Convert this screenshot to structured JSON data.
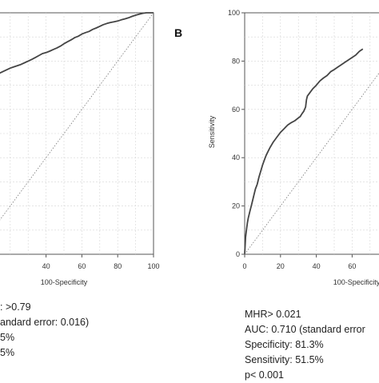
{
  "panels": [
    {
      "letter": "",
      "xlabel": "100-Specificity",
      "ylabel": "",
      "stats": [
        ": >0.79",
        "andard error: 0.016)",
        "5%",
        "5%"
      ]
    },
    {
      "letter": "B",
      "xlabel": "100-Specificity",
      "ylabel": "Sensitivity",
      "stats": [
        "MHR> 0.021",
        "AUC: 0.710 (standard error",
        "Specificity: 81.3%",
        "Sensitivity: 51.5%",
        "p< 0.001"
      ]
    }
  ],
  "chart_data": [
    {
      "type": "line",
      "title": "",
      "xlabel": "100-Specificity",
      "ylabel": "",
      "xlim": [
        0,
        100
      ],
      "ylim": [
        0,
        100
      ],
      "x_ticks": [
        40,
        60,
        80,
        100
      ],
      "y_ticks": [],
      "grid": true,
      "series": [
        {
          "style": "solid",
          "color": "#444444",
          "x": [
            0,
            2,
            4,
            6,
            8,
            10,
            12,
            14,
            16,
            18,
            20,
            22,
            24,
            26,
            28,
            30,
            32,
            34,
            36,
            38,
            40,
            42,
            44,
            46,
            48,
            50,
            52,
            54,
            56,
            58,
            60,
            62,
            64,
            66,
            68,
            70,
            72,
            74,
            76,
            78,
            80,
            82,
            84,
            86,
            88,
            90,
            92,
            94,
            96,
            98,
            100
          ],
          "y": [
            72,
            72.4,
            72.8,
            73.2,
            73.7,
            74.1,
            74.5,
            75,
            75.7,
            76.4,
            77.1,
            77.6,
            78.1,
            78.6,
            79.3,
            80,
            80.7,
            81.5,
            82.3,
            83.1,
            83.5,
            84.1,
            84.8,
            85.4,
            86.2,
            87.2,
            88,
            88.8,
            89.7,
            90.3,
            91.2,
            91.8,
            92.3,
            93.1,
            93.7,
            94.4,
            95.1,
            95.6,
            96,
            96.3,
            96.6,
            97.1,
            97.5,
            97.9,
            98.5,
            99,
            99.4,
            99.8,
            100,
            100,
            100
          ]
        },
        {
          "style": "dotted",
          "color": "#777777",
          "x": [
            0,
            100
          ],
          "y": [
            0,
            100
          ]
        }
      ]
    },
    {
      "type": "line",
      "title": "",
      "xlabel": "100-Specificity",
      "ylabel": "Sensitivity",
      "xlim": [
        0,
        100
      ],
      "ylim": [
        0,
        100
      ],
      "x_ticks": [
        0,
        20,
        40,
        60
      ],
      "y_ticks": [
        0,
        20,
        40,
        60,
        80,
        100
      ],
      "grid": true,
      "series": [
        {
          "style": "solid",
          "color": "#444444",
          "x": [
            0,
            0.5,
            1,
            1.5,
            2,
            3,
            4,
            5,
            6,
            7,
            8,
            9,
            10,
            11,
            12,
            13,
            14,
            16,
            18,
            20,
            22,
            24,
            26,
            28,
            30,
            31,
            32,
            33,
            34,
            34.5,
            35,
            36,
            38,
            40,
            42,
            44,
            46,
            48,
            50,
            52,
            54,
            56,
            58,
            60,
            62,
            64,
            66
          ],
          "y": [
            0,
            7,
            10,
            13,
            15,
            18,
            21,
            24,
            27,
            29,
            32,
            34.5,
            37,
            39,
            41,
            42.5,
            44,
            46.5,
            48.5,
            50.5,
            52,
            53.5,
            54.5,
            55.3,
            56.5,
            57,
            58.2,
            59.2,
            61,
            64,
            65.5,
            66.5,
            68.5,
            70,
            71.8,
            73,
            74,
            75.6,
            76.5,
            77.5,
            78.5,
            79.5,
            80.5,
            81.5,
            82.5,
            84,
            85
          ]
        },
        {
          "style": "dotted",
          "color": "#777777",
          "x": [
            0,
            100
          ],
          "y": [
            0,
            100
          ]
        }
      ]
    }
  ]
}
